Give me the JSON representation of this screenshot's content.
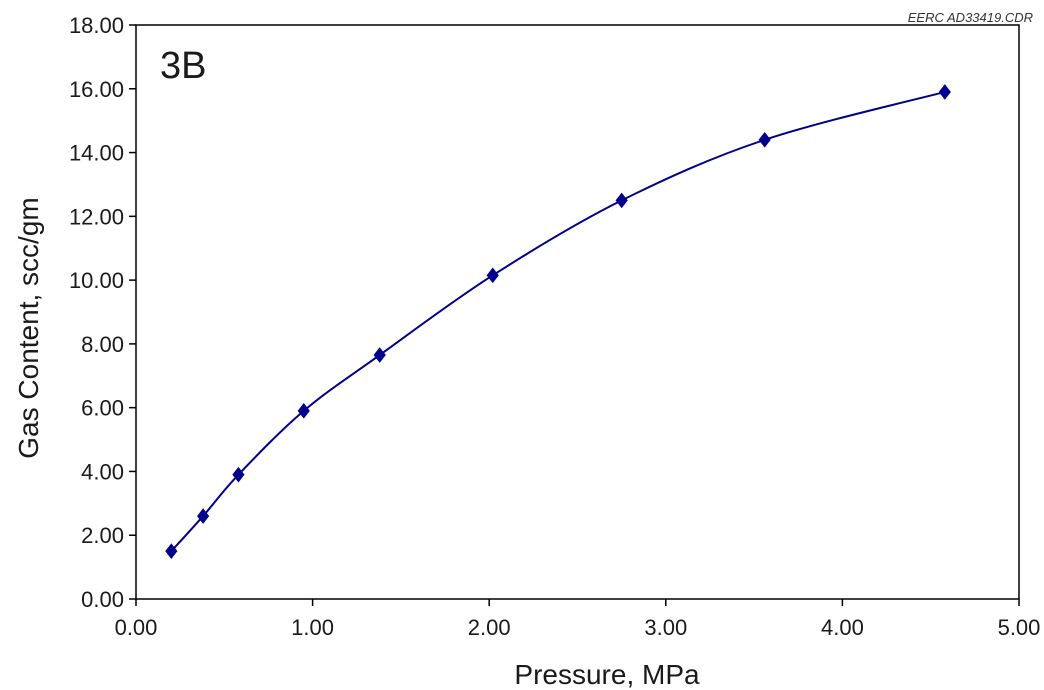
{
  "chart_data": {
    "type": "line",
    "panel_label": "3B",
    "reference_label": "EERC AD33419.CDR",
    "xlabel": "Pressure, MPa",
    "ylabel": "Gas Content, scc/gm",
    "xlim": [
      0,
      5
    ],
    "ylim": [
      0,
      18
    ],
    "xticks": [
      "0.00",
      "1.00",
      "2.00",
      "3.00",
      "4.00",
      "5.00"
    ],
    "yticks": [
      "0.00",
      "2.00",
      "4.00",
      "6.00",
      "8.00",
      "10.00",
      "12.00",
      "14.00",
      "16.00",
      "18.00"
    ],
    "grid": false,
    "legend": "none",
    "series": [
      {
        "marker": "diamond",
        "color": "#00008B",
        "x": [
          0.2,
          0.38,
          0.58,
          0.95,
          1.38,
          2.02,
          2.75,
          3.56,
          4.58
        ],
        "y": [
          1.5,
          2.6,
          3.9,
          5.9,
          7.65,
          10.15,
          12.5,
          14.4,
          15.9
        ]
      }
    ]
  }
}
